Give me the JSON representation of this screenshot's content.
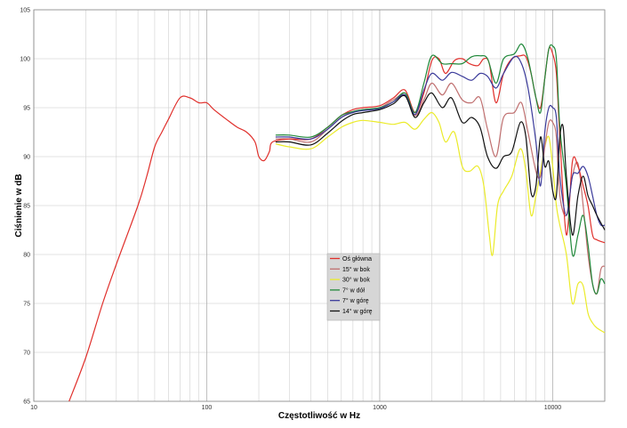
{
  "chart_data": {
    "type": "line",
    "xlabel": "Częstotliwość w Hz",
    "ylabel": "Ciśnienie w dB",
    "xscale": "log",
    "xlim": [
      10,
      20000
    ],
    "ylim": [
      65,
      105
    ],
    "xticks": [
      10,
      100,
      1000,
      10000
    ],
    "xtick_labels": [
      "10",
      "100",
      "1000",
      "10000"
    ],
    "yticks": [
      65,
      70,
      75,
      80,
      85,
      90,
      95,
      100,
      105
    ],
    "ytick_labels": [
      "65",
      "70",
      "75",
      "80",
      "85",
      "90",
      "95",
      "100",
      "105"
    ],
    "grid": true,
    "legend_position": "center",
    "series": [
      {
        "name": "Oś główna",
        "color": "#e0302c",
        "points": [
          [
            16,
            65
          ],
          [
            20,
            69.5
          ],
          [
            25,
            75
          ],
          [
            30,
            79
          ],
          [
            40,
            85
          ],
          [
            45,
            88
          ],
          [
            50,
            91
          ],
          [
            55,
            92.5
          ],
          [
            60,
            93.8
          ],
          [
            70,
            96
          ],
          [
            80,
            96
          ],
          [
            90,
            95.5
          ],
          [
            100,
            95.5
          ],
          [
            110,
            94.8
          ],
          [
            130,
            93.8
          ],
          [
            150,
            93
          ],
          [
            170,
            92.5
          ],
          [
            190,
            91.5
          ],
          [
            200,
            90
          ],
          [
            215,
            89.6
          ],
          [
            230,
            90.5
          ],
          [
            240,
            91.5
          ],
          [
            300,
            91.8
          ],
          [
            400,
            91.8
          ],
          [
            500,
            93
          ],
          [
            600,
            94.2
          ],
          [
            700,
            94.8
          ],
          [
            800,
            95
          ],
          [
            1000,
            95.2
          ],
          [
            1200,
            96
          ],
          [
            1400,
            96.8
          ],
          [
            1600,
            94.5
          ],
          [
            1800,
            96.5
          ],
          [
            2000,
            99.8
          ],
          [
            2200,
            100
          ],
          [
            2400,
            98.5
          ],
          [
            2700,
            99.8
          ],
          [
            3000,
            100
          ],
          [
            3300,
            99.5
          ],
          [
            3700,
            99.3
          ],
          [
            4000,
            100
          ],
          [
            4300,
            99.5
          ],
          [
            4700,
            95.5
          ],
          [
            5200,
            98.5
          ],
          [
            5800,
            100
          ],
          [
            6500,
            100.3
          ],
          [
            7000,
            100.2
          ],
          [
            7500,
            98.5
          ],
          [
            8000,
            96
          ],
          [
            8500,
            95
          ],
          [
            9000,
            98
          ],
          [
            9500,
            101
          ],
          [
            10000,
            100.5
          ],
          [
            10500,
            98.5
          ],
          [
            11000,
            92
          ],
          [
            12000,
            82
          ],
          [
            13000,
            89.5
          ],
          [
            14000,
            89
          ],
          [
            15000,
            87
          ],
          [
            16000,
            85
          ],
          [
            17000,
            82
          ],
          [
            18000,
            81.5
          ],
          [
            20000,
            81.2
          ]
        ]
      },
      {
        "name": "15° w bok",
        "color": "#c07070",
        "points": [
          [
            250,
            91.8
          ],
          [
            300,
            91.8
          ],
          [
            400,
            91.5
          ],
          [
            500,
            92.8
          ],
          [
            600,
            94
          ],
          [
            700,
            94.6
          ],
          [
            800,
            94.8
          ],
          [
            1000,
            95
          ],
          [
            1200,
            95.8
          ],
          [
            1400,
            96.3
          ],
          [
            1600,
            94.2
          ],
          [
            1800,
            95.8
          ],
          [
            2000,
            97.5
          ],
          [
            2300,
            96.3
          ],
          [
            2600,
            97.5
          ],
          [
            3000,
            95.8
          ],
          [
            3400,
            95.5
          ],
          [
            3800,
            96
          ],
          [
            4200,
            92.8
          ],
          [
            4700,
            90
          ],
          [
            5200,
            94
          ],
          [
            6000,
            94.5
          ],
          [
            6600,
            95.5
          ],
          [
            7200,
            92.5
          ],
          [
            8000,
            88.5
          ],
          [
            8500,
            88
          ],
          [
            9000,
            91
          ],
          [
            9500,
            93.5
          ],
          [
            10000,
            93.5
          ],
          [
            10500,
            92
          ],
          [
            11000,
            86
          ],
          [
            12000,
            84
          ],
          [
            13000,
            88
          ],
          [
            14000,
            89.3
          ],
          [
            15000,
            85
          ],
          [
            16000,
            80
          ],
          [
            17000,
            77
          ],
          [
            18000,
            76
          ],
          [
            19000,
            78.5
          ],
          [
            20000,
            78.8
          ]
        ]
      },
      {
        "name": "30° w bok",
        "color": "#ebeb2a",
        "points": [
          [
            250,
            91.3
          ],
          [
            300,
            91
          ],
          [
            400,
            90.8
          ],
          [
            500,
            92
          ],
          [
            600,
            93
          ],
          [
            700,
            93.5
          ],
          [
            800,
            93.7
          ],
          [
            1000,
            93.5
          ],
          [
            1200,
            93.3
          ],
          [
            1400,
            93.5
          ],
          [
            1600,
            92.8
          ],
          [
            1800,
            93.8
          ],
          [
            2000,
            94.5
          ],
          [
            2200,
            93.5
          ],
          [
            2400,
            91.5
          ],
          [
            2700,
            92.5
          ],
          [
            3000,
            89
          ],
          [
            3300,
            88.5
          ],
          [
            3700,
            89
          ],
          [
            4000,
            87
          ],
          [
            4300,
            82
          ],
          [
            4500,
            80
          ],
          [
            4800,
            85
          ],
          [
            5200,
            86.5
          ],
          [
            5800,
            88
          ],
          [
            6500,
            90.8
          ],
          [
            7000,
            88.5
          ],
          [
            7500,
            84
          ],
          [
            8000,
            86
          ],
          [
            8500,
            88.5
          ],
          [
            9000,
            91
          ],
          [
            9500,
            92
          ],
          [
            10000,
            89
          ],
          [
            10500,
            85
          ],
          [
            11000,
            83
          ],
          [
            12000,
            80
          ],
          [
            13000,
            75
          ],
          [
            14000,
            77
          ],
          [
            15000,
            76.8
          ],
          [
            16000,
            74
          ],
          [
            17000,
            73
          ],
          [
            18000,
            72.5
          ],
          [
            20000,
            72
          ]
        ]
      },
      {
        "name": "7° w dół",
        "color": "#20883a",
        "points": [
          [
            250,
            92.2
          ],
          [
            300,
            92.2
          ],
          [
            400,
            92
          ],
          [
            500,
            93
          ],
          [
            600,
            94.2
          ],
          [
            700,
            94.6
          ],
          [
            800,
            94.8
          ],
          [
            1000,
            95
          ],
          [
            1200,
            95.6
          ],
          [
            1400,
            96.5
          ],
          [
            1600,
            94.5
          ],
          [
            1800,
            97.5
          ],
          [
            2000,
            100.3
          ],
          [
            2300,
            99.5
          ],
          [
            2600,
            99.5
          ],
          [
            3000,
            99.5
          ],
          [
            3400,
            100.2
          ],
          [
            3800,
            100.3
          ],
          [
            4200,
            100
          ],
          [
            4700,
            97.5
          ],
          [
            5200,
            100
          ],
          [
            6000,
            100.5
          ],
          [
            6600,
            101.5
          ],
          [
            7200,
            100
          ],
          [
            8000,
            96
          ],
          [
            8500,
            94.5
          ],
          [
            9000,
            98
          ],
          [
            9500,
            101
          ],
          [
            10000,
            101.3
          ],
          [
            10500,
            100
          ],
          [
            11000,
            93
          ],
          [
            12000,
            87
          ],
          [
            13000,
            80
          ],
          [
            14000,
            82
          ],
          [
            15000,
            84
          ],
          [
            16000,
            81
          ],
          [
            17000,
            77
          ],
          [
            18000,
            76
          ],
          [
            19000,
            77.5
          ],
          [
            20000,
            77
          ]
        ]
      },
      {
        "name": "7° w górę",
        "color": "#3a3a9a",
        "points": [
          [
            250,
            92
          ],
          [
            300,
            92
          ],
          [
            400,
            91.8
          ],
          [
            500,
            92.8
          ],
          [
            600,
            94
          ],
          [
            700,
            94.5
          ],
          [
            800,
            94.7
          ],
          [
            1000,
            94.9
          ],
          [
            1200,
            95.6
          ],
          [
            1400,
            96.3
          ],
          [
            1600,
            94.3
          ],
          [
            1800,
            96.8
          ],
          [
            2000,
            98.5
          ],
          [
            2300,
            97.8
          ],
          [
            2600,
            98.6
          ],
          [
            3000,
            98.2
          ],
          [
            3400,
            97.8
          ],
          [
            3800,
            98.5
          ],
          [
            4200,
            98.2
          ],
          [
            4700,
            97
          ],
          [
            5200,
            98.5
          ],
          [
            6000,
            100.2
          ],
          [
            6600,
            99.5
          ],
          [
            7200,
            97
          ],
          [
            8000,
            91.5
          ],
          [
            8500,
            87
          ],
          [
            9000,
            92.5
          ],
          [
            9500,
            95
          ],
          [
            10000,
            95
          ],
          [
            10500,
            94
          ],
          [
            11000,
            88
          ],
          [
            12000,
            84
          ],
          [
            13000,
            88
          ],
          [
            14000,
            88.3
          ],
          [
            15000,
            89
          ],
          [
            16000,
            88
          ],
          [
            17000,
            86
          ],
          [
            18000,
            84
          ],
          [
            19000,
            83
          ],
          [
            20000,
            83
          ]
        ]
      },
      {
        "name": "14° w górę",
        "color": "#111111",
        "points": [
          [
            250,
            91.5
          ],
          [
            300,
            91.5
          ],
          [
            400,
            91.2
          ],
          [
            500,
            92.4
          ],
          [
            600,
            93.6
          ],
          [
            700,
            94.3
          ],
          [
            800,
            94.5
          ],
          [
            1000,
            94.8
          ],
          [
            1200,
            95.4
          ],
          [
            1400,
            96.2
          ],
          [
            1600,
            94
          ],
          [
            1800,
            95.5
          ],
          [
            2000,
            96.5
          ],
          [
            2300,
            95
          ],
          [
            2600,
            96
          ],
          [
            3000,
            93.5
          ],
          [
            3400,
            94
          ],
          [
            3800,
            93
          ],
          [
            4200,
            90
          ],
          [
            4700,
            88.8
          ],
          [
            5200,
            90
          ],
          [
            5800,
            90.5
          ],
          [
            6500,
            93.5
          ],
          [
            7000,
            92
          ],
          [
            7500,
            86.3
          ],
          [
            8000,
            87
          ],
          [
            8500,
            92
          ],
          [
            9000,
            89
          ],
          [
            9500,
            89.5
          ],
          [
            10000,
            86.5
          ],
          [
            10500,
            86
          ],
          [
            11000,
            92
          ],
          [
            11500,
            93
          ],
          [
            12000,
            88
          ],
          [
            13000,
            82
          ],
          [
            14000,
            86
          ],
          [
            15000,
            88
          ],
          [
            16000,
            86
          ],
          [
            17000,
            85
          ],
          [
            18000,
            84
          ],
          [
            20000,
            82.5
          ]
        ]
      }
    ]
  }
}
